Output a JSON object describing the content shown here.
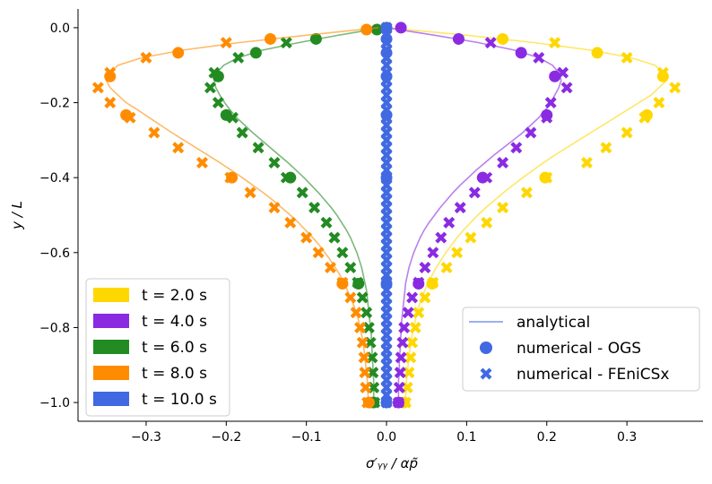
{
  "chart_data": {
    "type": "line",
    "xlabel": "σ′ᵧᵧ / αp̃",
    "ylabel": "y / L",
    "title": "",
    "xlim": [
      -0.385,
      0.395
    ],
    "ylim": [
      -1.05,
      0.05
    ],
    "xticks": [
      -0.3,
      -0.2,
      -0.1,
      0.0,
      0.1,
      0.2,
      0.3
    ],
    "xtick_labels": [
      "−0.3",
      "−0.2",
      "−0.1",
      "0.0",
      "0.1",
      "0.2",
      "0.3"
    ],
    "yticks": [
      0.0,
      -0.2,
      -0.4,
      -0.6,
      -0.8,
      -1.0
    ],
    "ytick_labels": [
      "0.0",
      "−0.2",
      "−0.4",
      "−0.6",
      "−0.8",
      "−1.0"
    ],
    "grid": false,
    "time_legend": {
      "placement": "lower-left",
      "entries": [
        {
          "label": "t = 2.0 s",
          "color": "#FFD700"
        },
        {
          "label": "t = 4.0 s",
          "color": "#8A2BE2"
        },
        {
          "label": "t = 6.0 s",
          "color": "#228B22"
        },
        {
          "label": "t = 8.0 s",
          "color": "#FF8C00"
        },
        {
          "label": "t = 10.0 s",
          "color": "#4169E1"
        }
      ]
    },
    "marker_legend": {
      "placement": "lower-right",
      "entries": [
        {
          "label": "analytical",
          "marker": "line"
        },
        {
          "label": "numerical - OGS",
          "marker": "circle"
        },
        {
          "label": "numerical - FEniCSx",
          "marker": "x"
        }
      ]
    },
    "series": [
      {
        "time": "2.0",
        "color": "#FFD700",
        "analytical": {
          "y": [
            0,
            -0.02,
            -0.04,
            -0.06,
            -0.08,
            -0.1,
            -0.12,
            -0.14,
            -0.16,
            -0.18,
            -0.2,
            -0.22,
            -0.24,
            -0.26,
            -0.28,
            -0.3,
            -0.32,
            -0.34,
            -0.36,
            -0.38,
            -0.4,
            -0.42,
            -0.44,
            -0.46,
            -0.48,
            -0.5,
            -0.52,
            -0.54,
            -0.56,
            -0.58,
            -0.6,
            -0.62,
            -0.64,
            -0.66,
            -0.68,
            -0.7,
            -0.72,
            -0.74,
            -0.76,
            -0.78,
            -0.8,
            -0.82,
            -0.84,
            -0.86,
            -0.88,
            -0.9,
            -0.92,
            -0.94,
            -0.96,
            -0.98,
            -1.0
          ],
          "x": [
            0.0,
            0.1,
            0.185,
            0.255,
            0.305,
            0.335,
            0.345,
            0.35,
            0.34,
            0.33,
            0.315,
            0.3,
            0.285,
            0.27,
            0.255,
            0.24,
            0.225,
            0.21,
            0.196,
            0.183,
            0.17,
            0.158,
            0.146,
            0.135,
            0.124,
            0.114,
            0.105,
            0.096,
            0.088,
            0.081,
            0.074,
            0.068,
            0.062,
            0.057,
            0.052,
            0.048,
            0.044,
            0.041,
            0.038,
            0.036,
            0.034,
            0.032,
            0.03,
            0.029,
            0.028,
            0.027,
            0.026,
            0.025,
            0.025,
            0.024,
            0.024
          ]
        },
        "ogs": {
          "y": [
            0.0,
            -0.03,
            -0.067,
            -0.13,
            -0.233,
            -0.4,
            -0.683,
            -1.0
          ],
          "x": [
            0.0,
            0.145,
            0.263,
            0.345,
            0.325,
            0.198,
            0.057,
            0.022
          ]
        },
        "fenicsx": {
          "y": [
            0.0,
            -0.04,
            -0.08,
            -0.12,
            -0.16,
            -0.2,
            -0.24,
            -0.28,
            -0.32,
            -0.36,
            -0.4,
            -0.44,
            -0.48,
            -0.52,
            -0.56,
            -0.6,
            -0.64,
            -0.68,
            -0.72,
            -0.76,
            -0.8,
            -0.84,
            -0.88,
            -0.92,
            -0.96,
            -1.0
          ],
          "x": [
            0.0,
            0.21,
            0.3,
            0.345,
            0.36,
            0.34,
            0.322,
            0.3,
            0.274,
            0.25,
            0.2,
            0.175,
            0.145,
            0.125,
            0.105,
            0.088,
            0.075,
            0.058,
            0.048,
            0.04,
            0.036,
            0.032,
            0.03,
            0.028,
            0.026,
            0.024
          ]
        }
      },
      {
        "time": "4.0",
        "color": "#8A2BE2",
        "analytical": {
          "y": [
            0,
            -0.02,
            -0.04,
            -0.06,
            -0.08,
            -0.1,
            -0.12,
            -0.14,
            -0.16,
            -0.18,
            -0.2,
            -0.22,
            -0.24,
            -0.26,
            -0.28,
            -0.3,
            -0.32,
            -0.34,
            -0.36,
            -0.38,
            -0.4,
            -0.42,
            -0.44,
            -0.46,
            -0.48,
            -0.5,
            -0.52,
            -0.54,
            -0.56,
            -0.58,
            -0.6,
            -0.62,
            -0.64,
            -0.66,
            -0.68,
            -0.7,
            -0.72,
            -0.74,
            -0.76,
            -0.78,
            -0.8,
            -0.82,
            -0.84,
            -0.86,
            -0.88,
            -0.9,
            -0.92,
            -0.94,
            -0.96,
            -0.98,
            -1.0
          ],
          "x": [
            0.0,
            0.06,
            0.115,
            0.16,
            0.19,
            0.207,
            0.215,
            0.218,
            0.215,
            0.21,
            0.205,
            0.198,
            0.19,
            0.18,
            0.17,
            0.158,
            0.146,
            0.134,
            0.123,
            0.112,
            0.102,
            0.092,
            0.083,
            0.075,
            0.067,
            0.06,
            0.053,
            0.047,
            0.042,
            0.038,
            0.034,
            0.031,
            0.028,
            0.026,
            0.024,
            0.023,
            0.022,
            0.021,
            0.02,
            0.019,
            0.018,
            0.018,
            0.017,
            0.017,
            0.016,
            0.016,
            0.016,
            0.015,
            0.015,
            0.015,
            0.015
          ]
        },
        "ogs": {
          "y": [
            0.0,
            -0.03,
            -0.067,
            -0.13,
            -0.233,
            -0.4,
            -0.683,
            -1.0
          ],
          "x": [
            0.018,
            0.09,
            0.168,
            0.21,
            0.2,
            0.12,
            0.04,
            0.015
          ]
        },
        "fenicsx": {
          "y": [
            -0.04,
            -0.08,
            -0.12,
            -0.16,
            -0.2,
            -0.24,
            -0.28,
            -0.32,
            -0.36,
            -0.4,
            -0.44,
            -0.48,
            -0.52,
            -0.56,
            -0.6,
            -0.64,
            -0.68,
            -0.72,
            -0.76,
            -0.8,
            -0.84,
            -0.88,
            -0.92,
            -0.96,
            -1.0
          ],
          "x": [
            0.13,
            0.19,
            0.22,
            0.225,
            0.205,
            0.2,
            0.18,
            0.162,
            0.145,
            0.125,
            0.11,
            0.092,
            0.078,
            0.068,
            0.058,
            0.048,
            0.04,
            0.032,
            0.027,
            0.022,
            0.02,
            0.018,
            0.017,
            0.016,
            0.015
          ]
        }
      },
      {
        "time": "6.0",
        "color": "#228B22",
        "analytical": {
          "y": [
            0,
            -0.02,
            -0.04,
            -0.06,
            -0.08,
            -0.1,
            -0.12,
            -0.14,
            -0.16,
            -0.18,
            -0.2,
            -0.22,
            -0.24,
            -0.26,
            -0.28,
            -0.3,
            -0.32,
            -0.34,
            -0.36,
            -0.38,
            -0.4,
            -0.42,
            -0.44,
            -0.46,
            -0.48,
            -0.5,
            -0.52,
            -0.54,
            -0.56,
            -0.58,
            -0.6,
            -0.62,
            -0.64,
            -0.66,
            -0.68,
            -0.7,
            -0.72,
            -0.74,
            -0.76,
            -0.78,
            -0.8,
            -0.82,
            -0.84,
            -0.86,
            -0.88,
            -0.9,
            -0.92,
            -0.94,
            -0.96,
            -0.98,
            -1.0
          ],
          "x": [
            -0.005,
            -0.06,
            -0.11,
            -0.155,
            -0.185,
            -0.203,
            -0.212,
            -0.215,
            -0.213,
            -0.208,
            -0.202,
            -0.195,
            -0.187,
            -0.177,
            -0.167,
            -0.156,
            -0.145,
            -0.134,
            -0.123,
            -0.113,
            -0.103,
            -0.094,
            -0.085,
            -0.077,
            -0.069,
            -0.062,
            -0.056,
            -0.05,
            -0.045,
            -0.041,
            -0.037,
            -0.034,
            -0.031,
            -0.029,
            -0.027,
            -0.025,
            -0.024,
            -0.023,
            -0.022,
            -0.021,
            -0.02,
            -0.019,
            -0.019,
            -0.018,
            -0.018,
            -0.017,
            -0.017,
            -0.016,
            -0.016,
            -0.016,
            -0.016
          ]
        },
        "ogs": {
          "y": [
            -0.005,
            -0.03,
            -0.067,
            -0.13,
            -0.233,
            -0.4,
            -0.683,
            -1.0
          ],
          "x": [
            -0.012,
            -0.088,
            -0.163,
            -0.21,
            -0.2,
            -0.12,
            -0.035,
            -0.016
          ]
        },
        "fenicsx": {
          "y": [
            -0.04,
            -0.08,
            -0.12,
            -0.16,
            -0.2,
            -0.24,
            -0.28,
            -0.32,
            -0.36,
            -0.4,
            -0.44,
            -0.48,
            -0.52,
            -0.56,
            -0.6,
            -0.64,
            -0.68,
            -0.72,
            -0.76,
            -0.8,
            -0.84,
            -0.88,
            -0.92,
            -0.96,
            -1.0
          ],
          "x": [
            -0.125,
            -0.185,
            -0.215,
            -0.22,
            -0.21,
            -0.192,
            -0.18,
            -0.16,
            -0.14,
            -0.125,
            -0.105,
            -0.09,
            -0.075,
            -0.065,
            -0.055,
            -0.045,
            -0.036,
            -0.03,
            -0.025,
            -0.022,
            -0.02,
            -0.018,
            -0.017,
            -0.016,
            -0.015
          ]
        }
      },
      {
        "time": "8.0",
        "color": "#FF8C00",
        "analytical": {
          "y": [
            0,
            -0.02,
            -0.04,
            -0.06,
            -0.08,
            -0.1,
            -0.12,
            -0.14,
            -0.16,
            -0.18,
            -0.2,
            -0.22,
            -0.24,
            -0.26,
            -0.28,
            -0.3,
            -0.32,
            -0.34,
            -0.36,
            -0.38,
            -0.4,
            -0.42,
            -0.44,
            -0.46,
            -0.48,
            -0.5,
            -0.52,
            -0.54,
            -0.56,
            -0.58,
            -0.6,
            -0.62,
            -0.64,
            -0.66,
            -0.68,
            -0.7,
            -0.72,
            -0.74,
            -0.76,
            -0.78,
            -0.8,
            -0.82,
            -0.84,
            -0.86,
            -0.88,
            -0.9,
            -0.92,
            -0.94,
            -0.96,
            -0.98,
            -1.0
          ],
          "x": [
            -0.01,
            -0.1,
            -0.185,
            -0.255,
            -0.305,
            -0.335,
            -0.345,
            -0.35,
            -0.345,
            -0.335,
            -0.325,
            -0.31,
            -0.296,
            -0.282,
            -0.268,
            -0.253,
            -0.238,
            -0.223,
            -0.208,
            -0.194,
            -0.18,
            -0.167,
            -0.154,
            -0.142,
            -0.131,
            -0.12,
            -0.11,
            -0.101,
            -0.092,
            -0.084,
            -0.077,
            -0.07,
            -0.064,
            -0.058,
            -0.053,
            -0.049,
            -0.045,
            -0.041,
            -0.038,
            -0.035,
            -0.033,
            -0.031,
            -0.029,
            -0.028,
            -0.027,
            -0.026,
            -0.025,
            -0.024,
            -0.024,
            -0.023,
            -0.023
          ]
        },
        "ogs": {
          "y": [
            -0.005,
            -0.03,
            -0.067,
            -0.13,
            -0.233,
            -0.4,
            -0.683,
            -1.0
          ],
          "x": [
            -0.025,
            -0.145,
            -0.26,
            -0.345,
            -0.325,
            -0.193,
            -0.055,
            -0.022
          ]
        },
        "fenicsx": {
          "y": [
            -0.04,
            -0.08,
            -0.12,
            -0.16,
            -0.2,
            -0.24,
            -0.28,
            -0.32,
            -0.36,
            -0.4,
            -0.44,
            -0.48,
            -0.52,
            -0.56,
            -0.6,
            -0.64,
            -0.68,
            -0.72,
            -0.76,
            -0.8,
            -0.84,
            -0.88,
            -0.92,
            -0.96,
            -1.0
          ],
          "x": [
            -0.2,
            -0.3,
            -0.345,
            -0.36,
            -0.345,
            -0.32,
            -0.29,
            -0.26,
            -0.23,
            -0.195,
            -0.17,
            -0.14,
            -0.12,
            -0.1,
            -0.085,
            -0.07,
            -0.055,
            -0.045,
            -0.038,
            -0.033,
            -0.03,
            -0.028,
            -0.027,
            -0.026,
            -0.024
          ]
        }
      },
      {
        "time": "10.0",
        "color": "#4169E1",
        "analytical": {
          "y": [
            0,
            -0.1,
            -0.2,
            -0.3,
            -0.4,
            -0.5,
            -0.6,
            -0.7,
            -0.8,
            -0.9,
            -1.0
          ],
          "x": [
            0.0,
            0.0,
            0.0,
            0.0,
            0.0,
            0.0,
            0.0,
            0.0,
            0.0,
            0.0,
            0.0
          ]
        },
        "ogs": {
          "y": [
            0.0,
            -0.03,
            -0.067,
            -0.13,
            -0.233,
            -0.4,
            -0.683,
            -1.0
          ],
          "x": [
            0.0,
            0.0,
            0.0,
            0.0,
            0.0,
            0.0,
            0.0,
            0.0
          ]
        },
        "fenicsx": {
          "y": [
            0.0,
            -0.02,
            -0.04,
            -0.06,
            -0.08,
            -0.1,
            -0.12,
            -0.14,
            -0.16,
            -0.18,
            -0.2,
            -0.22,
            -0.24,
            -0.26,
            -0.28,
            -0.3,
            -0.32,
            -0.34,
            -0.36,
            -0.38,
            -0.4,
            -0.42,
            -0.44,
            -0.46,
            -0.48,
            -0.5,
            -0.52,
            -0.54,
            -0.56,
            -0.58,
            -0.6,
            -0.62,
            -0.64,
            -0.66,
            -0.68,
            -0.7,
            -0.72,
            -0.74,
            -0.76,
            -0.78,
            -0.8,
            -0.82,
            -0.84,
            -0.86,
            -0.88,
            -0.9,
            -0.92,
            -0.94,
            -0.96,
            -0.98,
            -1.0
          ],
          "x": [
            0,
            0,
            0,
            0,
            0,
            0,
            0,
            0,
            0,
            0,
            0,
            0,
            0,
            0,
            0,
            0,
            0,
            0,
            0,
            0,
            0,
            0,
            0,
            0,
            0,
            0,
            0,
            0,
            0,
            0,
            0,
            0,
            0,
            0,
            0,
            0,
            0,
            0,
            0,
            0,
            0,
            0,
            0,
            0,
            0,
            0,
            0,
            0,
            0,
            0,
            0
          ]
        }
      }
    ]
  }
}
